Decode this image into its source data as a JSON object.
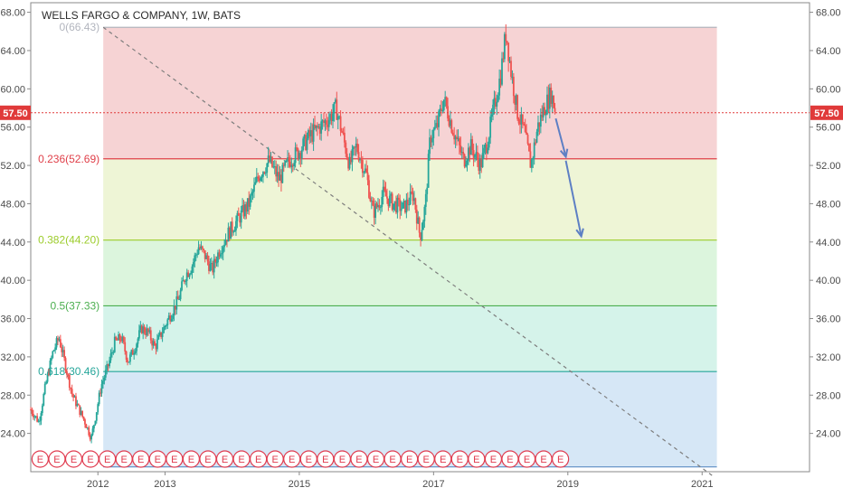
{
  "chart_data": {
    "type": "candlestick",
    "title": "WELLS FARGO & COMPANY, 1W, BATS",
    "y_ticks": [
      "24.00",
      "28.00",
      "32.00",
      "36.00",
      "40.00",
      "44.00",
      "48.00",
      "52.00",
      "56.00",
      "60.00",
      "64.00",
      "68.00"
    ],
    "x_ticks": [
      "2012",
      "2013",
      "2015",
      "2017",
      "2019",
      "2021"
    ],
    "ylim": [
      20,
      69
    ],
    "xlim": [
      2011.0,
      2022.6
    ],
    "current_price": {
      "label": "57.50",
      "value": 57.5
    },
    "fib_levels": [
      {
        "label": "0(66.43)",
        "value": 66.43,
        "color": "#b2b5be"
      },
      {
        "label": "0.236(52.69)",
        "value": 52.69,
        "color": "#e0404a"
      },
      {
        "label": "0.382(44.20)",
        "value": 44.2,
        "color": "#9ccc2b"
      },
      {
        "label": "0.5(37.33)",
        "value": 37.33,
        "color": "#4caf50"
      },
      {
        "label": "0.618(30.46)",
        "value": 30.46,
        "color": "#26a69a"
      }
    ],
    "fib_bottom": 20.5,
    "fib_zone_colors": [
      "#f6d3d4",
      "#eef5d6",
      "#dcf5dd",
      "#d5f3ea",
      "#d6e7f6"
    ],
    "fib_x_range": [
      2012.08,
      2021.22
    ],
    "trend_line": {
      "x": [
        2012.08,
        2021.15
      ],
      "y": [
        66.43,
        19.6
      ]
    },
    "arrows": [
      {
        "x": [
          2018.82,
          2018.97
        ],
        "y": [
          56.9,
          52.9
        ]
      },
      {
        "x": [
          2018.97,
          2019.2
        ],
        "y": [
          52.5,
          44.6
        ]
      }
    ],
    "earnings_marker": "E",
    "earnings_x": [
      2011.14,
      2011.39,
      2011.64,
      2011.89,
      2012.14,
      2012.39,
      2012.64,
      2012.89,
      2013.14,
      2013.39,
      2013.64,
      2013.89,
      2014.14,
      2014.39,
      2014.64,
      2014.89,
      2015.14,
      2015.39,
      2015.64,
      2015.89,
      2016.14,
      2016.39,
      2016.64,
      2016.89,
      2017.14,
      2017.39,
      2017.64,
      2017.89,
      2018.14,
      2018.39,
      2018.64,
      2018.89
    ],
    "price_path": [
      [
        2011.0,
        26.5
      ],
      [
        2011.12,
        25.2
      ],
      [
        2011.22,
        29.0
      ],
      [
        2011.33,
        32.5
      ],
      [
        2011.42,
        34.0
      ],
      [
        2011.52,
        31.0
      ],
      [
        2011.62,
        28.0
      ],
      [
        2011.72,
        26.5
      ],
      [
        2011.82,
        25.0
      ],
      [
        2011.9,
        23.5
      ],
      [
        2011.97,
        26.0
      ],
      [
        2012.05,
        29.0
      ],
      [
        2012.15,
        31.0
      ],
      [
        2012.25,
        33.5
      ],
      [
        2012.35,
        34.0
      ],
      [
        2012.45,
        31.5
      ],
      [
        2012.55,
        33.0
      ],
      [
        2012.65,
        35.0
      ],
      [
        2012.75,
        34.5
      ],
      [
        2012.85,
        33.0
      ],
      [
        2012.95,
        34.5
      ],
      [
        2013.05,
        36.0
      ],
      [
        2013.2,
        38.0
      ],
      [
        2013.3,
        40.5
      ],
      [
        2013.4,
        41.5
      ],
      [
        2013.5,
        43.5
      ],
      [
        2013.6,
        42.5
      ],
      [
        2013.7,
        41.0
      ],
      [
        2013.8,
        43.0
      ],
      [
        2013.95,
        45.0
      ],
      [
        2014.1,
        46.5
      ],
      [
        2014.25,
        48.0
      ],
      [
        2014.4,
        51.0
      ],
      [
        2014.55,
        52.5
      ],
      [
        2014.7,
        50.5
      ],
      [
        2014.85,
        52.5
      ],
      [
        2015.0,
        53.5
      ],
      [
        2015.15,
        55.0
      ],
      [
        2015.3,
        56.0
      ],
      [
        2015.45,
        57.0
      ],
      [
        2015.55,
        58.0
      ],
      [
        2015.65,
        55.0
      ],
      [
        2015.75,
        52.0
      ],
      [
        2015.85,
        54.0
      ],
      [
        2016.0,
        51.0
      ],
      [
        2016.1,
        47.0
      ],
      [
        2016.25,
        49.0
      ],
      [
        2016.4,
        48.0
      ],
      [
        2016.55,
        47.5
      ],
      [
        2016.7,
        49.0
      ],
      [
        2016.8,
        44.5
      ],
      [
        2016.88,
        48.0
      ],
      [
        2016.95,
        55.0
      ],
      [
        2017.05,
        56.0
      ],
      [
        2017.15,
        59.0
      ],
      [
        2017.3,
        55.5
      ],
      [
        2017.45,
        52.5
      ],
      [
        2017.55,
        54.0
      ],
      [
        2017.7,
        52.0
      ],
      [
        2017.8,
        54.5
      ],
      [
        2017.9,
        58.0
      ],
      [
        2018.0,
        61.5
      ],
      [
        2018.08,
        66.0
      ],
      [
        2018.15,
        62.0
      ],
      [
        2018.25,
        57.5
      ],
      [
        2018.35,
        55.5
      ],
      [
        2018.45,
        52.0
      ],
      [
        2018.55,
        56.0
      ],
      [
        2018.65,
        58.0
      ],
      [
        2018.75,
        59.5
      ],
      [
        2018.82,
        57.5
      ]
    ]
  }
}
